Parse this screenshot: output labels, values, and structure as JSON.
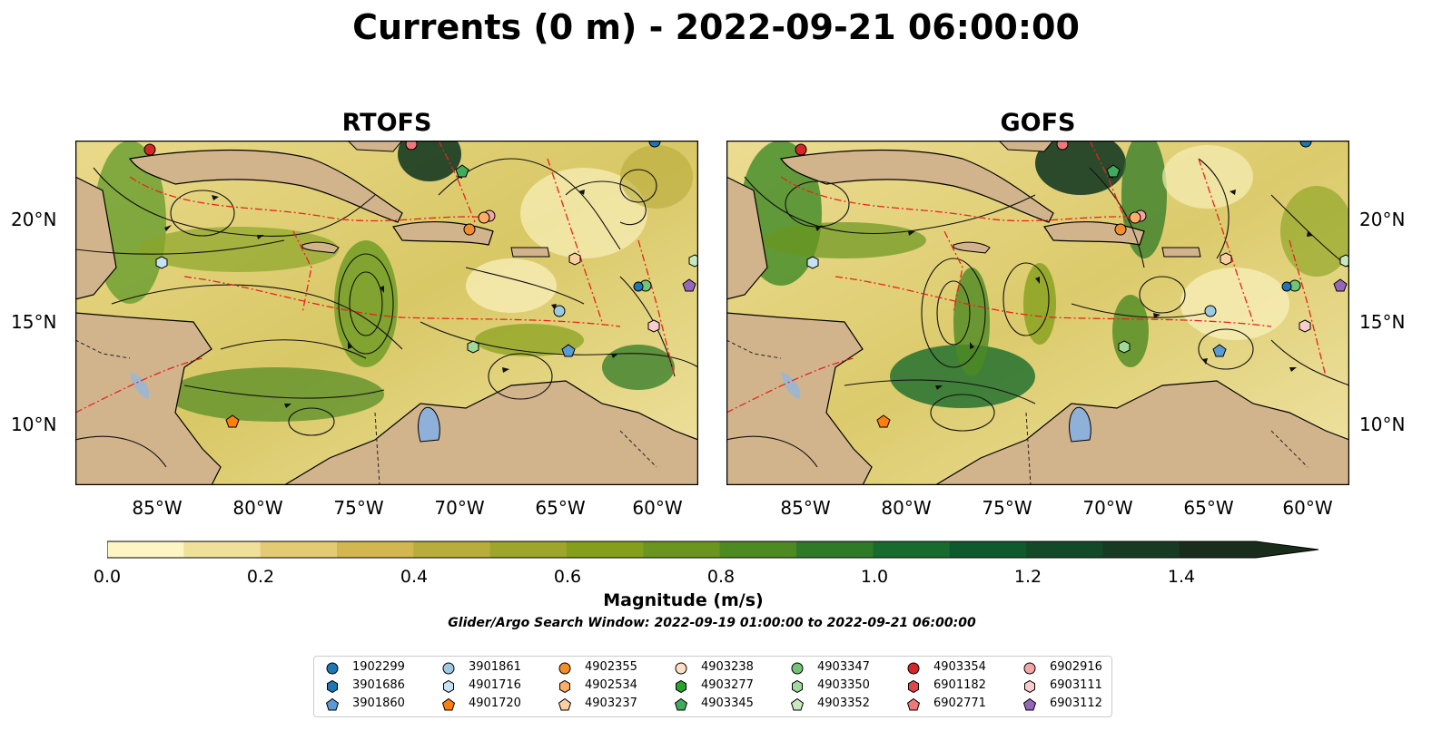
{
  "title": "Currents (0 m) - 2022-09-21 06:00:00",
  "panels": [
    {
      "title": "RTOFS"
    },
    {
      "title": "GOFS"
    }
  ],
  "lat_labels": [
    "20°N",
    "15°N",
    "10°N"
  ],
  "lon_labels": [
    "85°W",
    "80°W",
    "75°W",
    "70°W",
    "65°W",
    "60°W"
  ],
  "colorbar": {
    "label": "Magnitude (m/s)",
    "ticks": [
      "0.0",
      "0.2",
      "0.4",
      "0.6",
      "0.8",
      "1.0",
      "1.2",
      "1.4"
    ],
    "range": [
      0,
      1.5
    ],
    "extend": "max",
    "colors": [
      "#fdf5c4",
      "#f0e19a",
      "#e2cb72",
      "#d2b650",
      "#b8ac3a",
      "#9da52a",
      "#84a01b",
      "#6a9620",
      "#4e8a22",
      "#2f7a26",
      "#186b2c",
      "#0f5a2c",
      "#124a28",
      "#173b22",
      "#1a2d1b"
    ]
  },
  "search_window": "Glider/Argo Search Window: 2022-09-19 01:00:00 to 2022-09-21 06:00:00",
  "legend": [
    {
      "label": "1902299",
      "marker": "circle",
      "color": "#1f77b4"
    },
    {
      "label": "3901686",
      "marker": "hexagon",
      "color": "#1f77b4"
    },
    {
      "label": "3901860",
      "marker": "pentagon",
      "color": "#5a9bd5"
    },
    {
      "label": "3901861",
      "marker": "circle",
      "color": "#9ecae1"
    },
    {
      "label": "4901716",
      "marker": "hexagon",
      "color": "#c6e2f2"
    },
    {
      "label": "4901720",
      "marker": "pentagon",
      "color": "#ff7f0e"
    },
    {
      "label": "4902355",
      "marker": "circle",
      "color": "#f28e2b"
    },
    {
      "label": "4902534",
      "marker": "hexagon",
      "color": "#fdae6b"
    },
    {
      "label": "4903237",
      "marker": "pentagon",
      "color": "#fdd0a2"
    },
    {
      "label": "4903238",
      "marker": "circle",
      "color": "#fde0c5"
    },
    {
      "label": "4903277",
      "marker": "hexagon",
      "color": "#2ca02c"
    },
    {
      "label": "4903345",
      "marker": "pentagon",
      "color": "#41ab5d"
    },
    {
      "label": "4903347",
      "marker": "circle",
      "color": "#74c476"
    },
    {
      "label": "4903350",
      "marker": "hexagon",
      "color": "#a1d99b"
    },
    {
      "label": "4903352",
      "marker": "pentagon",
      "color": "#c7e9c0"
    },
    {
      "label": "4903354",
      "marker": "circle",
      "color": "#d62728"
    },
    {
      "label": "6901182",
      "marker": "hexagon",
      "color": "#e0474c"
    },
    {
      "label": "6902771",
      "marker": "pentagon",
      "color": "#f07878"
    },
    {
      "label": "6902916",
      "marker": "circle",
      "color": "#f4a6a6"
    },
    {
      "label": "6903111",
      "marker": "hexagon",
      "color": "#fbcccc"
    },
    {
      "label": "6903112",
      "marker": "pentagon",
      "color": "#9467bd"
    }
  ]
}
